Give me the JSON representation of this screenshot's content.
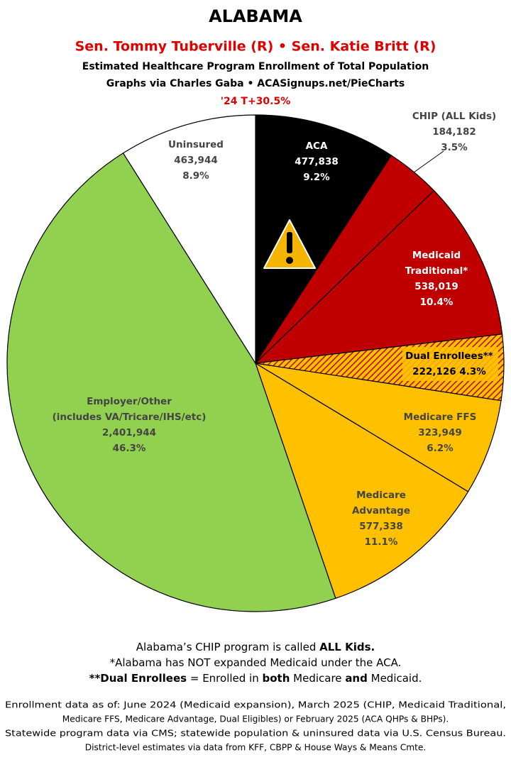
{
  "chart_data": {
    "type": "pie",
    "title": "ALABAMA",
    "subtitle": "Sen. Tommy Tuberville (R) • Sen. Katie Britt (R)",
    "description_lines": [
      "Estimated Healthcare Program Enrollment of Total Population",
      "Graphs via Charles Gaba  •  ACASignups.net/PieCharts"
    ],
    "partisan_lean": "'24 T+30.5%",
    "labels": [
      [
        "ACA"
      ],
      [
        "CHIP (ALL Kids)"
      ],
      [
        "Medicaid",
        "Traditional*"
      ],
      [
        "Dual Enrollees**"
      ],
      [
        "Medicare FFS"
      ],
      [
        "Medicare",
        "Advantage"
      ],
      [
        "Employer/Other",
        "(includes VA/Tricare/IHS/etc)"
      ],
      [
        "Uninsured"
      ]
    ],
    "values": [
      477838,
      184182,
      538019,
      222126,
      323949,
      577338,
      2401944,
      463944
    ],
    "value_labels": [
      "477,838",
      "184,182",
      "538,019",
      "222,126",
      "323,949",
      "577,338",
      "2,401,944",
      "463,944"
    ],
    "percents": [
      9.2,
      3.5,
      10.4,
      4.3,
      6.2,
      11.1,
      46.3,
      8.9
    ],
    "percent_labels": [
      "9.2%",
      "3.5%",
      "10.4%",
      "4.3%",
      "6.2%",
      "11.1%",
      "46.3%",
      "8.9%"
    ],
    "colors": [
      "#000000",
      "#c00000",
      "#c00000",
      "hatch",
      "#ffc000",
      "#ffc000",
      "#92d050",
      "#ffffff"
    ],
    "notes": [
      [
        {
          "text": "Alabama’s CHIP program is called ",
          "bold": false
        },
        {
          "text": "ALL Kids.",
          "bold": true
        }
      ],
      [
        {
          "text": "*Alabama has NOT expanded Medicaid under the ACA.",
          "bold": false
        }
      ],
      [
        {
          "text": "**Dual Enrollees",
          "bold": true
        },
        {
          "text": " = Enrolled in ",
          "bold": false
        },
        {
          "text": "both",
          "bold": true
        },
        {
          "text": " Medicare ",
          "bold": false
        },
        {
          "text": "and",
          "bold": true
        },
        {
          "text": " Medicaid.",
          "bold": false
        }
      ]
    ],
    "footer": [
      "Enrollment data as of: June 2024 (Medicaid expansion), March 2025 (CHIP, Medicaid Traditional,",
      "Medicare FFS, Medicare Advantage, Dual Eligibles) or February 2025 (ACA QHPs & BHPs).",
      "Statewide program data via CMS; statewide population & uninsured data via U.S. Census Bureau.",
      "District-level estimates via data from KFF, CBPP & House Ways & Means Cmte."
    ]
  }
}
